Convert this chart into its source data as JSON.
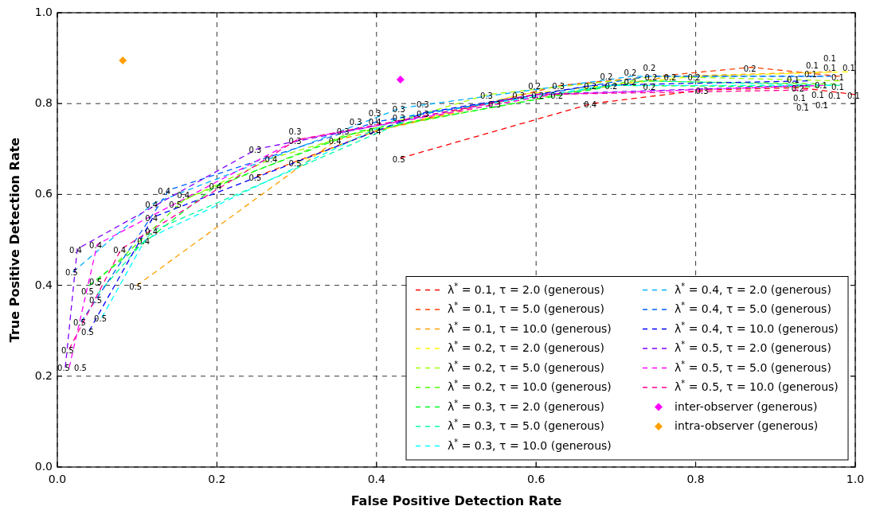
{
  "chart_data": {
    "type": "line",
    "xlabel": "False Positive Detection Rate",
    "ylabel": "True Positive Detection Rate",
    "xlim": [
      0,
      1
    ],
    "ylim": [
      0,
      1
    ],
    "xticks": [
      {
        "value": 0,
        "label": "0.0"
      },
      0.2,
      0.4,
      0.6,
      0.8,
      {
        "value": 1,
        "label": "1.0"
      }
    ],
    "yticks": [
      {
        "value": 0,
        "label": "0.0"
      },
      0.2,
      0.4,
      0.6,
      0.8,
      {
        "value": 1,
        "label": "1.0"
      }
    ],
    "grid": true,
    "legend": "bottom right",
    "line_style": "dashed",
    "marker": "none",
    "series": [
      {
        "name": "λ$^{*}$ = 0.1, τ = 2.0 (generous)",
        "color": "#ff0000",
        "x": [
          0.43,
          0.67,
          0.81,
          0.93,
          1.0
        ],
        "values": [
          0.68,
          0.8,
          0.83,
          0.835,
          0.82
        ]
      },
      {
        "name": "λ$^{*}$ = 0.1, τ = 5.0 (generous)",
        "color": "#ff4000",
        "x": [
          0.25,
          0.4,
          0.63,
          0.87,
          0.98
        ],
        "values": [
          0.64,
          0.74,
          0.84,
          0.88,
          0.86
        ]
      },
      {
        "name": "λ$^{*}$ = 0.1, τ = 10.0 (generous)",
        "color": "#ffa000",
        "x": [
          0.1,
          0.35,
          0.55,
          0.77,
          0.97
        ],
        "values": [
          0.4,
          0.72,
          0.8,
          0.86,
          0.87
        ]
      },
      {
        "name": "λ$^{*}$ = 0.2, τ = 2.0 (generous)",
        "color": "#ffff00",
        "x": [
          0.3,
          0.4,
          0.58,
          0.8,
          0.99
        ],
        "values": [
          0.67,
          0.74,
          0.82,
          0.86,
          0.87
        ]
      },
      {
        "name": "λ$^{*}$ = 0.2, τ = 5.0 (generous)",
        "color": "#a0ff00",
        "x": [
          0.15,
          0.27,
          0.54,
          0.75,
          0.98
        ],
        "values": [
          0.58,
          0.68,
          0.82,
          0.86,
          0.85
        ]
      },
      {
        "name": "λ$^{*}$ = 0.2, τ = 10.0 (generous)",
        "color": "#50ff00",
        "x": [
          0.05,
          0.16,
          0.36,
          0.72,
          0.975
        ],
        "values": [
          0.41,
          0.59,
          0.73,
          0.85,
          0.843
        ]
      },
      {
        "name": "λ$^{*}$ = 0.3, τ = 2.0 (generous)",
        "color": "#00ff20",
        "x": [
          0.04,
          0.2,
          0.38,
          0.7,
          0.955
        ],
        "values": [
          0.4,
          0.62,
          0.74,
          0.84,
          0.837
        ]
      },
      {
        "name": "λ$^{*}$ = 0.3, τ = 5.0 (generous)",
        "color": "#00ffa0",
        "x": [
          0.05,
          0.12,
          0.46,
          0.74,
          0.98
        ],
        "values": [
          0.38,
          0.52,
          0.78,
          0.85,
          0.84
        ]
      },
      {
        "name": "λ$^{*}$ = 0.3, τ = 10.0 (generous)",
        "color": "#00ffff",
        "x": [
          0.056,
          0.11,
          0.43,
          0.69,
          0.97
        ],
        "values": [
          0.33,
          0.5,
          0.77,
          0.84,
          0.84
        ]
      },
      {
        "name": "λ$^{*}$ = 0.4, τ = 2.0 (generous)",
        "color": "#00b0ff",
        "x": [
          0.02,
          0.12,
          0.43,
          0.72,
          0.96
        ],
        "values": [
          0.43,
          0.58,
          0.79,
          0.86,
          0.86
        ]
      },
      {
        "name": "λ$^{*}$ = 0.4, τ = 5.0 (generous)",
        "color": "#0060ff",
        "x": [
          0.03,
          0.14,
          0.4,
          0.74,
          0.97
        ],
        "values": [
          0.32,
          0.61,
          0.76,
          0.86,
          0.86
        ]
      },
      {
        "name": "λ$^{*}$ = 0.4, τ = 10.0 (generous)",
        "color": "#0000ff",
        "x": [
          0.04,
          0.12,
          0.46,
          0.67,
          0.94
        ],
        "values": [
          0.3,
          0.55,
          0.78,
          0.84,
          0.85
        ]
      },
      {
        "name": "λ$^{*}$ = 0.5, τ = 2.0 (generous)",
        "color": "#8000ff",
        "x": [
          0.01,
          0.025,
          0.25,
          0.6,
          0.94
        ],
        "values": [
          0.22,
          0.48,
          0.7,
          0.82,
          0.84
        ]
      },
      {
        "name": "λ$^{*}$ = 0.5, τ = 5.0 (generous)",
        "color": "#ff00ff",
        "x": [
          0.015,
          0.05,
          0.3,
          0.62,
          0.96
        ],
        "values": [
          0.22,
          0.49,
          0.72,
          0.82,
          0.84
        ]
      },
      {
        "name": "λ$^{*}$ = 0.5, τ = 10.0 (generous)",
        "color": "#ff0090",
        "x": [
          0.015,
          0.08,
          0.3,
          0.6,
          0.94
        ],
        "values": [
          0.26,
          0.48,
          0.72,
          0.82,
          0.83
        ]
      },
      {
        "name": "inter-observer (generous)",
        "type": "scatter",
        "marker": "diamond",
        "color": "#ff00ff",
        "x": [
          0.43
        ],
        "values": [
          0.853
        ]
      },
      {
        "name": "intra-observer (generous)",
        "type": "scatter",
        "marker": "diamond",
        "color": "#ffa000",
        "x": [
          0.082
        ],
        "values": [
          0.895
        ]
      }
    ],
    "annotations": [
      {
        "text": "0.5",
        "x": 0.43,
        "y": 0.68
      },
      {
        "text": "0.4",
        "x": 0.67,
        "y": 0.8
      },
      {
        "text": "0.3",
        "x": 0.81,
        "y": 0.83
      },
      {
        "text": "0.2",
        "x": 0.93,
        "y": 0.835
      },
      {
        "text": "0.1",
        "x": 1.0,
        "y": 0.82
      },
      {
        "text": "0.5",
        "x": 0.25,
        "y": 0.64
      },
      {
        "text": "0.4",
        "x": 0.4,
        "y": 0.74
      },
      {
        "text": "0.3",
        "x": 0.63,
        "y": 0.84
      },
      {
        "text": "0.2",
        "x": 0.87,
        "y": 0.88
      },
      {
        "text": "0.1",
        "x": 0.98,
        "y": 0.86
      },
      {
        "text": "0.5",
        "x": 0.1,
        "y": 0.4
      },
      {
        "text": "0.4",
        "x": 0.35,
        "y": 0.72
      },
      {
        "text": "0.3",
        "x": 0.55,
        "y": 0.8
      },
      {
        "text": "0.2",
        "x": 0.77,
        "y": 0.86
      },
      {
        "text": "0.1",
        "x": 0.97,
        "y": 0.87
      },
      {
        "text": "0.5",
        "x": 0.3,
        "y": 0.67
      },
      {
        "text": "0.4",
        "x": 0.4,
        "y": 0.74
      },
      {
        "text": "0.3",
        "x": 0.58,
        "y": 0.82
      },
      {
        "text": "0.2",
        "x": 0.8,
        "y": 0.86
      },
      {
        "text": "0.1",
        "x": 0.99,
        "y": 0.87
      },
      {
        "text": "0.5",
        "x": 0.15,
        "y": 0.58
      },
      {
        "text": "0.4",
        "x": 0.27,
        "y": 0.68
      },
      {
        "text": "0.3",
        "x": 0.54,
        "y": 0.82
      },
      {
        "text": "0.2",
        "x": 0.75,
        "y": 0.86
      },
      {
        "text": "0.1",
        "x": 0.98,
        "y": 0.85
      },
      {
        "text": "0.5",
        "x": 0.05,
        "y": 0.41
      },
      {
        "text": "0.4",
        "x": 0.16,
        "y": 0.59
      },
      {
        "text": "0.3",
        "x": 0.36,
        "y": 0.73
      },
      {
        "text": "0.2",
        "x": 0.72,
        "y": 0.85
      },
      {
        "text": "0.1",
        "x": 0.975,
        "y": 0.843
      },
      {
        "text": "0.5",
        "x": 0.04,
        "y": 0.4
      },
      {
        "text": "0.4",
        "x": 0.2,
        "y": 0.62
      },
      {
        "text": "0.3",
        "x": 0.38,
        "y": 0.74
      },
      {
        "text": "0.2",
        "x": 0.7,
        "y": 0.84
      },
      {
        "text": "0.1",
        "x": 0.955,
        "y": 0.837
      },
      {
        "text": "0.5",
        "x": 0.05,
        "y": 0.38
      },
      {
        "text": "0.4",
        "x": 0.12,
        "y": 0.52
      },
      {
        "text": "0.3",
        "x": 0.46,
        "y": 0.78
      },
      {
        "text": "0.2",
        "x": 0.74,
        "y": 0.85
      },
      {
        "text": "0.1",
        "x": 0.98,
        "y": 0.84
      },
      {
        "text": "0.5",
        "x": 0.056,
        "y": 0.33
      },
      {
        "text": "0.4",
        "x": 0.11,
        "y": 0.5
      },
      {
        "text": "0.3",
        "x": 0.43,
        "y": 0.77
      },
      {
        "text": "0.2",
        "x": 0.69,
        "y": 0.84
      },
      {
        "text": "0.1",
        "x": 0.97,
        "y": 0.84
      },
      {
        "text": "0.5",
        "x": 0.02,
        "y": 0.43
      },
      {
        "text": "0.4",
        "x": 0.12,
        "y": 0.58
      },
      {
        "text": "0.3",
        "x": 0.43,
        "y": 0.79
      },
      {
        "text": "0.2",
        "x": 0.72,
        "y": 0.86
      },
      {
        "text": "0.1",
        "x": 0.96,
        "y": 0.86
      },
      {
        "text": "0.5",
        "x": 0.03,
        "y": 0.32
      },
      {
        "text": "0.4",
        "x": 0.14,
        "y": 0.61
      },
      {
        "text": "0.3",
        "x": 0.4,
        "y": 0.76
      },
      {
        "text": "0.2",
        "x": 0.74,
        "y": 0.86
      },
      {
        "text": "0.1",
        "x": 0.97,
        "y": 0.86
      },
      {
        "text": "0.5",
        "x": 0.04,
        "y": 0.3
      },
      {
        "text": "0.4",
        "x": 0.12,
        "y": 0.55
      },
      {
        "text": "0.3",
        "x": 0.46,
        "y": 0.78
      },
      {
        "text": "0.2",
        "x": 0.67,
        "y": 0.84
      },
      {
        "text": "0.1",
        "x": 0.94,
        "y": 0.85
      },
      {
        "text": "0.5",
        "x": 0.01,
        "y": 0.22
      },
      {
        "text": "0.4",
        "x": 0.025,
        "y": 0.48
      },
      {
        "text": "0.3",
        "x": 0.25,
        "y": 0.7
      },
      {
        "text": "0.2",
        "x": 0.6,
        "y": 0.82
      },
      {
        "text": "0.1",
        "x": 0.94,
        "y": 0.84
      },
      {
        "text": "0.5",
        "x": 0.015,
        "y": 0.22
      },
      {
        "text": "0.4",
        "x": 0.05,
        "y": 0.49
      },
      {
        "text": "0.3",
        "x": 0.3,
        "y": 0.72
      },
      {
        "text": "0.2",
        "x": 0.62,
        "y": 0.82
      },
      {
        "text": "0.1",
        "x": 0.96,
        "y": 0.84
      },
      {
        "text": "0.5",
        "x": 0.015,
        "y": 0.26
      },
      {
        "text": "0.4",
        "x": 0.08,
        "y": 0.48
      },
      {
        "text": "0.3",
        "x": 0.3,
        "y": 0.72
      },
      {
        "text": "0.2",
        "x": 0.6,
        "y": 0.82
      },
      {
        "text": "0.1",
        "x": 0.94,
        "y": 0.83
      }
    ]
  }
}
